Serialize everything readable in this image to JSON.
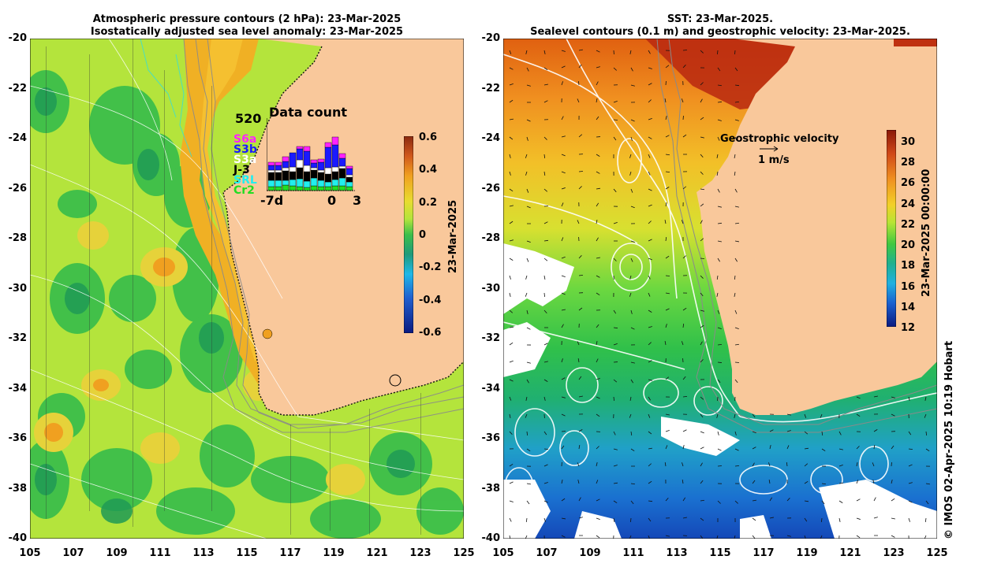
{
  "left_panel": {
    "title_line1": "Atmospheric pressure contours (2 hPa): 23-Mar-2025",
    "title_line2": "Isostatically adjusted sea level anomaly: 23-Mar-2025",
    "colorbar": {
      "label": "23-Mar-2025",
      "ticks": [
        "0.6",
        "0.4",
        "0.2",
        "0",
        "-0.2",
        "-0.4",
        "-0.6"
      ],
      "range": [
        -0.6,
        0.6
      ]
    },
    "data_count": {
      "title": "Data count",
      "max_label": "520",
      "x_start": "-7d",
      "x_zero": "0",
      "x_end": "3",
      "missions": [
        "S6a",
        "S3b",
        "S3a",
        "J-3",
        "SRL",
        "Cr2"
      ],
      "mission_colors": [
        "#ff22ff",
        "#1a1aff",
        "#ffffff",
        "#000000",
        "#22eeee",
        "#22dd22"
      ]
    }
  },
  "right_panel": {
    "title_line1": "SST: 23-Mar-2025.",
    "title_line2": "Sealevel contours (0.1 m) and geostrophic velocity: 23-Mar-2025.",
    "velocity_legend_title": "Geostrophic velocity",
    "velocity_legend_scale": "1 m/s",
    "colorbar": {
      "label": "23-Mar-2025 00:00:00",
      "ticks": [
        "30",
        "28",
        "26",
        "24",
        "22",
        "20",
        "18",
        "16",
        "14",
        "12"
      ],
      "range": [
        12,
        31
      ]
    }
  },
  "axes": {
    "lat_ticks": [
      "-20",
      "-22",
      "-24",
      "-26",
      "-28",
      "-30",
      "-32",
      "-34",
      "-36",
      "-38",
      "-40"
    ],
    "lon_ticks": [
      "105",
      "107",
      "109",
      "111",
      "113",
      "115",
      "117",
      "119",
      "121",
      "123",
      "125"
    ],
    "lon_range": [
      105,
      125
    ],
    "lat_range": [
      -40,
      -20
    ]
  },
  "credit": "© IMOS 02-Apr-2025 10:19 Hobart",
  "colors": {
    "land": "#f9c89b",
    "sla_pos": "#f0a020",
    "sla_neutral": "#a6e43a",
    "sla_neg": "#22aa55",
    "sst_warm": "#c03010",
    "sst_cool": "#1040c0"
  }
}
